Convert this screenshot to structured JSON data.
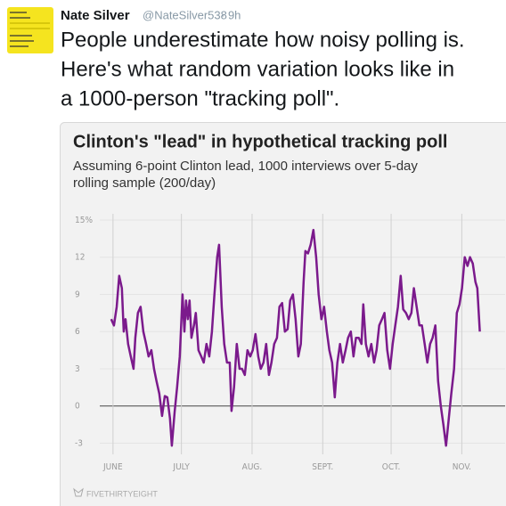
{
  "tweet": {
    "name": "Nate Silver",
    "handle": "@NateSilver538",
    "time": "· 9h",
    "text": [
      "People underestimate how noisy polling is.",
      "Here's what random variation looks like in",
      "a 1000-person \"tracking poll\"."
    ]
  },
  "chart_data": {
    "type": "line",
    "title": "Clinton's \"lead\" in hypothetical tracking poll",
    "subtitle": [
      "Assuming 6-point Clinton lead, 1000 interviews over 5-day",
      "rolling sample (200/day)"
    ],
    "source": "FIVETHIRTYEIGHT",
    "x": [
      -0.8,
      0.4,
      1.6,
      2.7,
      3.9,
      4.7,
      5.5,
      6.6,
      7.8,
      9.0,
      9.8,
      10.9,
      12.1,
      13.3,
      14.5,
      15.6,
      16.8,
      18.0,
      19.1,
      20.3,
      21.5,
      22.7,
      23.8,
      25.0,
      25.8,
      27.0,
      28.1,
      29.3,
      30.5,
      31.3,
      32.0,
      32.8,
      33.6,
      34.4,
      35.5,
      36.3,
      37.5,
      38.7,
      39.8,
      41.0,
      42.2,
      43.4,
      44.5,
      45.7,
      46.5,
      47.7,
      48.8,
      50.0,
      51.2,
      52.0,
      53.1,
      54.3,
      55.5,
      56.6,
      57.8,
      59.0,
      60.2,
      61.3,
      62.5,
      63.7,
      64.8,
      66.0,
      67.2,
      68.4,
      69.5,
      70.7,
      71.9,
      73.0,
      74.2,
      75.4,
      76.6,
      77.7,
      78.9,
      80.1,
      81.3,
      82.4,
      83.6,
      84.4,
      85.5,
      86.7,
      87.9,
      89.1,
      90.2,
      91.4,
      92.6,
      93.8,
      94.9,
      96.1,
      97.3,
      98.4,
      99.6,
      100.8,
      102.0,
      103.1,
      104.3,
      105.5,
      106.6,
      107.8,
      109.0,
      109.8,
      110.9,
      112.1,
      113.3,
      114.5,
      115.6,
      116.8,
      118.0,
      119.1,
      120.3,
      121.5,
      122.7,
      123.8,
      125.0,
      126.2,
      127.3,
      128.5,
      129.7,
      130.9,
      132.0,
      133.2,
      134.4,
      135.5,
      136.7,
      137.9,
      139.1,
      140.2,
      141.4,
      142.6,
      143.8,
      144.9,
      146.1,
      147.3,
      148.4,
      149.6,
      150.8,
      152.0,
      153.1,
      154.3,
      155.5,
      156.6,
      157.8,
      159.0,
      159.8,
      160.9
    ],
    "series": [
      {
        "color": "#7b1a8c",
        "values": [
          7,
          6.5,
          8,
          10.5,
          9.5,
          6,
          7,
          5,
          4,
          3,
          5.5,
          7.5,
          8,
          6,
          5,
          4,
          4.5,
          3,
          2,
          1,
          -0.8,
          0.8,
          0.7,
          -1,
          -3.2,
          -0.5,
          1.5,
          4,
          9,
          6,
          8.5,
          7,
          8.5,
          5.5,
          6.5,
          7.5,
          4.5,
          4,
          3.5,
          5,
          4,
          6,
          9,
          12,
          13,
          8,
          5,
          3.5,
          3.5,
          -0.4,
          1.5,
          5,
          3,
          3,
          2.5,
          4.5,
          4,
          4.5,
          5.8,
          4,
          3,
          3.5,
          5,
          2.5,
          3.5,
          5,
          5.5,
          8,
          8.3,
          6,
          6.2,
          8.5,
          9,
          7,
          4,
          5,
          10,
          12.5,
          12.3,
          13,
          14.2,
          12,
          9,
          7,
          8,
          6,
          4.5,
          3.5,
          0.7,
          3.5,
          5,
          3.5,
          4.5,
          5.5,
          6,
          4,
          5.5,
          5.5,
          5,
          8.2,
          5,
          4,
          5,
          3.5,
          4.5,
          6.5,
          7,
          7.5,
          4.5,
          3,
          5,
          6.5,
          8,
          10.5,
          7.8,
          7.5,
          7,
          7.5,
          9.5,
          8,
          6.5,
          6.5,
          5,
          3.5,
          5,
          5.5,
          6.5,
          2,
          0,
          -1.5,
          -3.2,
          -1,
          1,
          3,
          7.5,
          8.2,
          9.5,
          12,
          11.3,
          12,
          11.5,
          10,
          9.5,
          6
        ]
      }
    ],
    "xlim": [
      -10.5,
      172
    ],
    "xticks": [
      {
        "value": 0,
        "label": "JUNE"
      },
      {
        "value": 30,
        "label": "JULY"
      },
      {
        "value": 61,
        "label": "AUG."
      },
      {
        "value": 92,
        "label": "SEPT."
      },
      {
        "value": 122,
        "label": "OCT."
      },
      {
        "value": 153,
        "label": "NOV."
      }
    ],
    "ylim": [
      -3.9,
      15.5
    ],
    "yticks": [
      -3,
      0,
      3,
      6,
      9,
      12,
      {
        "value": 15,
        "label": "15%"
      }
    ],
    "grid": true
  }
}
